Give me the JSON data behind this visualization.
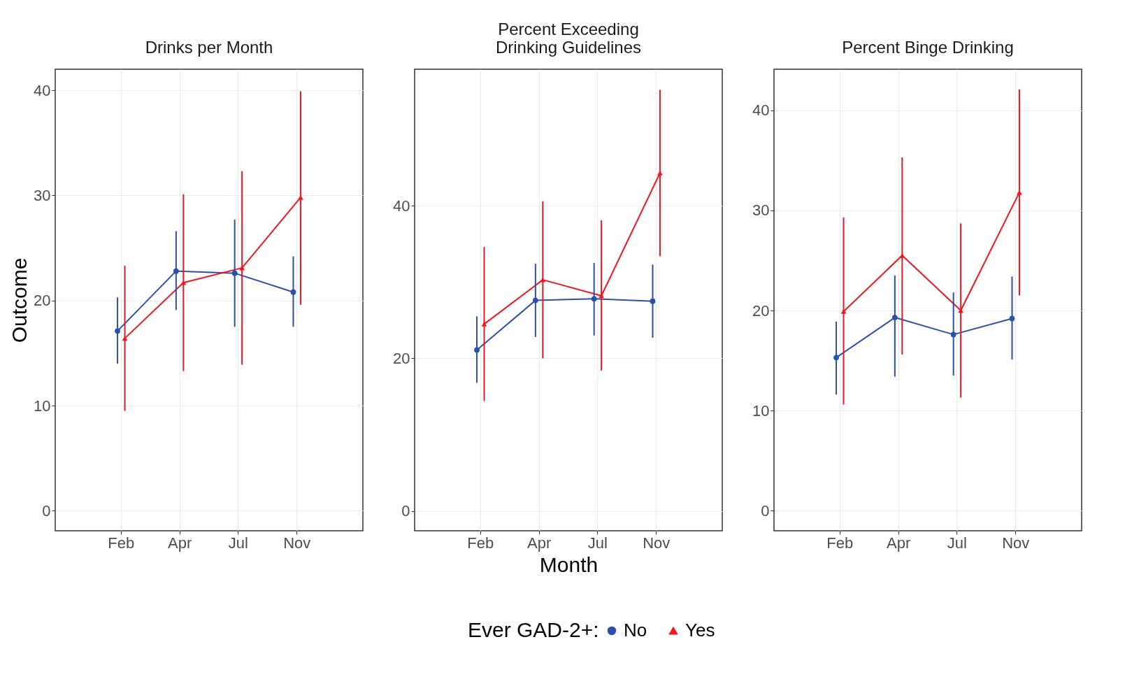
{
  "chart_data": [
    {
      "type": "line",
      "title": "Drinks per Month",
      "ylabel": "Outcome",
      "categories": [
        "Feb",
        "Apr",
        "Jul",
        "Nov"
      ],
      "ylim": [
        -1.9,
        42
      ],
      "yticks": [
        0,
        10,
        20,
        30,
        40
      ],
      "grid": true,
      "legend": "bottom",
      "legend_title": "Ever GAD-2+:",
      "series": [
        {
          "name": "No",
          "color": "#2b50a8",
          "marker": "circle",
          "values": [
            17.1,
            22.8,
            22.6,
            20.8
          ],
          "errors": [
            [
              14.0,
              20.3
            ],
            [
              19.1,
              26.6
            ],
            [
              17.5,
              27.7
            ],
            [
              17.5,
              24.2
            ]
          ]
        },
        {
          "name": "Yes",
          "color": "#f5141e",
          "marker": "triangle",
          "values": [
            16.4,
            21.7,
            23.1,
            29.8
          ],
          "errors": [
            [
              9.5,
              23.3
            ],
            [
              13.3,
              30.1
            ],
            [
              13.9,
              32.3
            ],
            [
              19.6,
              39.9
            ]
          ]
        }
      ]
    },
    {
      "type": "line",
      "title": "Percent Exceeding\nDrinking Guidelines",
      "xlabel": "Month",
      "categories": [
        "Feb",
        "Apr",
        "Jul",
        "Nov"
      ],
      "ylim": [
        -2.6,
        57.9
      ],
      "yticks": [
        0,
        20,
        40
      ],
      "grid": true,
      "series": [
        {
          "name": "No",
          "color": "#2b50a8",
          "marker": "circle",
          "values": [
            21.1,
            27.6,
            27.8,
            27.5
          ],
          "errors": [
            [
              16.8,
              25.5
            ],
            [
              22.8,
              32.4
            ],
            [
              23.0,
              32.5
            ],
            [
              22.7,
              32.3
            ]
          ]
        },
        {
          "name": "Yes",
          "color": "#f5141e",
          "marker": "triangle",
          "values": [
            24.5,
            30.3,
            28.2,
            44.3
          ],
          "errors": [
            [
              14.4,
              34.6
            ],
            [
              20.0,
              40.6
            ],
            [
              18.4,
              38.1
            ],
            [
              33.4,
              55.2
            ]
          ]
        }
      ]
    },
    {
      "type": "line",
      "title": "Percent Binge Drinking",
      "categories": [
        "Feb",
        "Apr",
        "Jul",
        "Nov"
      ],
      "ylim": [
        -2,
        44.1
      ],
      "yticks": [
        0,
        10,
        20,
        30,
        40
      ],
      "grid": true,
      "series": [
        {
          "name": "No",
          "color": "#2b50a8",
          "marker": "circle",
          "values": [
            15.3,
            19.3,
            17.6,
            19.2
          ],
          "errors": [
            [
              11.6,
              18.9
            ],
            [
              13.4,
              23.5
            ],
            [
              13.5,
              21.8
            ],
            [
              15.1,
              23.4
            ]
          ]
        },
        {
          "name": "Yes",
          "color": "#f5141e",
          "marker": "triangle",
          "values": [
            19.9,
            25.5,
            20.0,
            31.8
          ],
          "errors": [
            [
              10.6,
              29.3
            ],
            [
              15.6,
              35.3
            ],
            [
              11.3,
              28.7
            ],
            [
              21.5,
              42.1
            ]
          ]
        }
      ]
    }
  ]
}
